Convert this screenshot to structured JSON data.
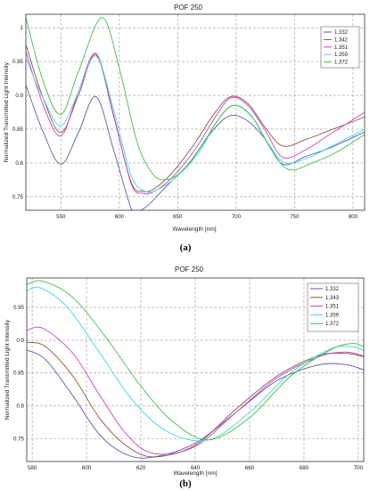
{
  "chart_data": [
    {
      "type": "line",
      "title": "POF 250",
      "caption": "(a)",
      "xlabel": "Wavelength [nm]",
      "ylabel": "Normalized Transmitted Light Intensity",
      "xlim": [
        520,
        810
      ],
      "ylim": [
        0.73,
        1.02
      ],
      "xticks": [
        550,
        600,
        650,
        700,
        750,
        800
      ],
      "yticks": [
        0.75,
        0.8,
        0.85,
        0.9,
        0.95,
        1
      ],
      "ytick_labels": [
        "0.75",
        "0.8",
        "0.85",
        "0.9",
        "0.95",
        "1"
      ],
      "grid": true,
      "legend_position": "top-right",
      "series": [
        {
          "name": "1.332",
          "color": "#5a5ab4",
          "x": [
            520,
            535,
            550,
            565,
            580,
            595,
            610,
            615,
            625,
            640,
            660,
            680,
            695,
            710,
            725,
            740,
            760,
            780,
            810
          ],
          "y": [
            0.915,
            0.845,
            0.798,
            0.845,
            0.898,
            0.82,
            0.733,
            0.728,
            0.738,
            0.765,
            0.8,
            0.848,
            0.87,
            0.862,
            0.835,
            0.798,
            0.81,
            0.822,
            0.846
          ]
        },
        {
          "name": "1.342",
          "color": "#8b5a3c",
          "x": [
            520,
            535,
            550,
            565,
            580,
            595,
            610,
            620,
            630,
            645,
            665,
            680,
            695,
            710,
            725,
            740,
            760,
            780,
            810
          ],
          "y": [
            0.975,
            0.895,
            0.845,
            0.9,
            0.96,
            0.87,
            0.772,
            0.758,
            0.762,
            0.785,
            0.83,
            0.87,
            0.898,
            0.888,
            0.852,
            0.825,
            0.835,
            0.848,
            0.868
          ]
        },
        {
          "name": "1.351",
          "color": "#d040c8",
          "x": [
            520,
            535,
            550,
            565,
            580,
            595,
            610,
            620,
            630,
            645,
            665,
            680,
            695,
            710,
            725,
            740,
            760,
            780,
            810
          ],
          "y": [
            0.965,
            0.885,
            0.84,
            0.905,
            0.962,
            0.872,
            0.77,
            0.755,
            0.758,
            0.778,
            0.82,
            0.862,
            0.896,
            0.885,
            0.848,
            0.808,
            0.82,
            0.842,
            0.875
          ]
        },
        {
          "name": "1.359",
          "color": "#40d8e0",
          "x": [
            520,
            535,
            550,
            565,
            580,
            595,
            610,
            622,
            632,
            648,
            668,
            683,
            697,
            712,
            727,
            742,
            762,
            782,
            810
          ],
          "y": [
            0.955,
            0.895,
            0.855,
            0.905,
            0.958,
            0.88,
            0.782,
            0.758,
            0.76,
            0.778,
            0.815,
            0.86,
            0.885,
            0.872,
            0.83,
            0.8,
            0.808,
            0.825,
            0.85
          ]
        },
        {
          "name": "1.372",
          "color": "#40c040",
          "x": [
            520,
            535,
            550,
            565,
            585,
            600,
            615,
            628,
            640,
            655,
            672,
            688,
            700,
            715,
            730,
            745,
            765,
            785,
            810
          ],
          "y": [
            1.015,
            0.92,
            0.872,
            0.935,
            1.015,
            0.94,
            0.832,
            0.785,
            0.775,
            0.79,
            0.83,
            0.872,
            0.885,
            0.865,
            0.82,
            0.79,
            0.8,
            0.815,
            0.842
          ]
        }
      ]
    },
    {
      "type": "line",
      "title": "POF 250",
      "caption": "(b)",
      "xlabel": "Wavelength [nm]",
      "ylabel": "Normalized Transmitted Light Intensity",
      "xlim": [
        578,
        702
      ],
      "ylim": [
        0.715,
        0.995
      ],
      "xticks": [
        580,
        600,
        620,
        640,
        660,
        680,
        700
      ],
      "yticks": [
        0.75,
        0.8,
        0.85,
        0.9,
        0.95
      ],
      "ytick_labels": [
        "0.75",
        "0.8",
        "0.85",
        "0.9",
        "0.95"
      ],
      "grid": true,
      "legend_position": "top-right",
      "series": [
        {
          "name": "1.332",
          "color": "#5a5ab4",
          "x": [
            578,
            585,
            595,
            605,
            615,
            625,
            640,
            655,
            670,
            685,
            695,
            702
          ],
          "y": [
            0.885,
            0.87,
            0.815,
            0.755,
            0.725,
            0.722,
            0.743,
            0.79,
            0.838,
            0.862,
            0.863,
            0.855
          ]
        },
        {
          "name": "1.343",
          "color": "#8b5a3c",
          "x": [
            578,
            585,
            595,
            605,
            615,
            625,
            640,
            655,
            670,
            685,
            695,
            702
          ],
          "y": [
            0.897,
            0.89,
            0.845,
            0.78,
            0.738,
            0.722,
            0.74,
            0.795,
            0.845,
            0.876,
            0.88,
            0.875
          ]
        },
        {
          "name": "1.351",
          "color": "#d040c8",
          "x": [
            578,
            584,
            595,
            605,
            615,
            625,
            640,
            655,
            670,
            685,
            695,
            702
          ],
          "y": [
            0.915,
            0.918,
            0.88,
            0.815,
            0.755,
            0.727,
            0.738,
            0.79,
            0.842,
            0.874,
            0.882,
            0.876
          ]
        },
        {
          "name": "1.359",
          "color": "#40d8e0",
          "x": [
            578,
            583,
            593,
            605,
            617,
            630,
            645,
            660,
            675,
            690,
            698,
            702
          ],
          "y": [
            0.975,
            0.98,
            0.95,
            0.88,
            0.808,
            0.76,
            0.748,
            0.79,
            0.85,
            0.887,
            0.89,
            0.884
          ]
        },
        {
          "name": "1.372",
          "color": "#40c040",
          "x": [
            578,
            584,
            595,
            607,
            620,
            632,
            645,
            660,
            675,
            690,
            698,
            702
          ],
          "y": [
            0.985,
            0.99,
            0.965,
            0.905,
            0.83,
            0.775,
            0.748,
            0.782,
            0.845,
            0.886,
            0.895,
            0.89
          ]
        }
      ]
    }
  ]
}
